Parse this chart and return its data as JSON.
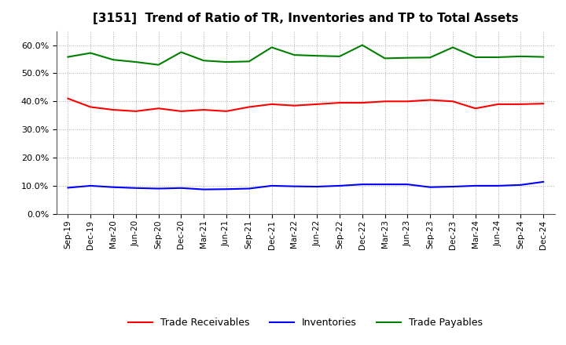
{
  "title": "[3151]  Trend of Ratio of TR, Inventories and TP to Total Assets",
  "x_labels": [
    "Sep-19",
    "Dec-19",
    "Mar-20",
    "Jun-20",
    "Sep-20",
    "Dec-20",
    "Mar-21",
    "Jun-21",
    "Sep-21",
    "Dec-21",
    "Mar-22",
    "Jun-22",
    "Sep-22",
    "Dec-22",
    "Mar-23",
    "Jun-23",
    "Sep-23",
    "Dec-23",
    "Mar-24",
    "Jun-24",
    "Sep-24",
    "Dec-24"
  ],
  "trade_receivables": [
    0.41,
    0.38,
    0.37,
    0.365,
    0.375,
    0.365,
    0.37,
    0.365,
    0.38,
    0.39,
    0.385,
    0.39,
    0.395,
    0.395,
    0.4,
    0.4,
    0.405,
    0.4,
    0.375,
    0.39,
    0.39,
    0.392
  ],
  "inventories": [
    0.093,
    0.1,
    0.095,
    0.092,
    0.09,
    0.092,
    0.087,
    0.088,
    0.09,
    0.1,
    0.098,
    0.097,
    0.1,
    0.105,
    0.105,
    0.105,
    0.095,
    0.097,
    0.1,
    0.1,
    0.103,
    0.114
  ],
  "trade_payables": [
    0.558,
    0.572,
    0.548,
    0.54,
    0.53,
    0.575,
    0.545,
    0.54,
    0.542,
    0.592,
    0.565,
    0.562,
    0.56,
    0.6,
    0.553,
    0.555,
    0.556,
    0.592,
    0.557,
    0.557,
    0.56,
    0.558
  ],
  "tr_color": "#FF0000",
  "inv_color": "#0000FF",
  "tp_color": "#008000",
  "ylim": [
    0.0,
    0.65
  ],
  "yticks": [
    0.0,
    0.1,
    0.2,
    0.3,
    0.4,
    0.5,
    0.6
  ],
  "bg_color": "#FFFFFF",
  "plot_bg_color": "#FFFFFF",
  "grid_color": "#AAAAAA",
  "legend_labels": [
    "Trade Receivables",
    "Inventories",
    "Trade Payables"
  ]
}
